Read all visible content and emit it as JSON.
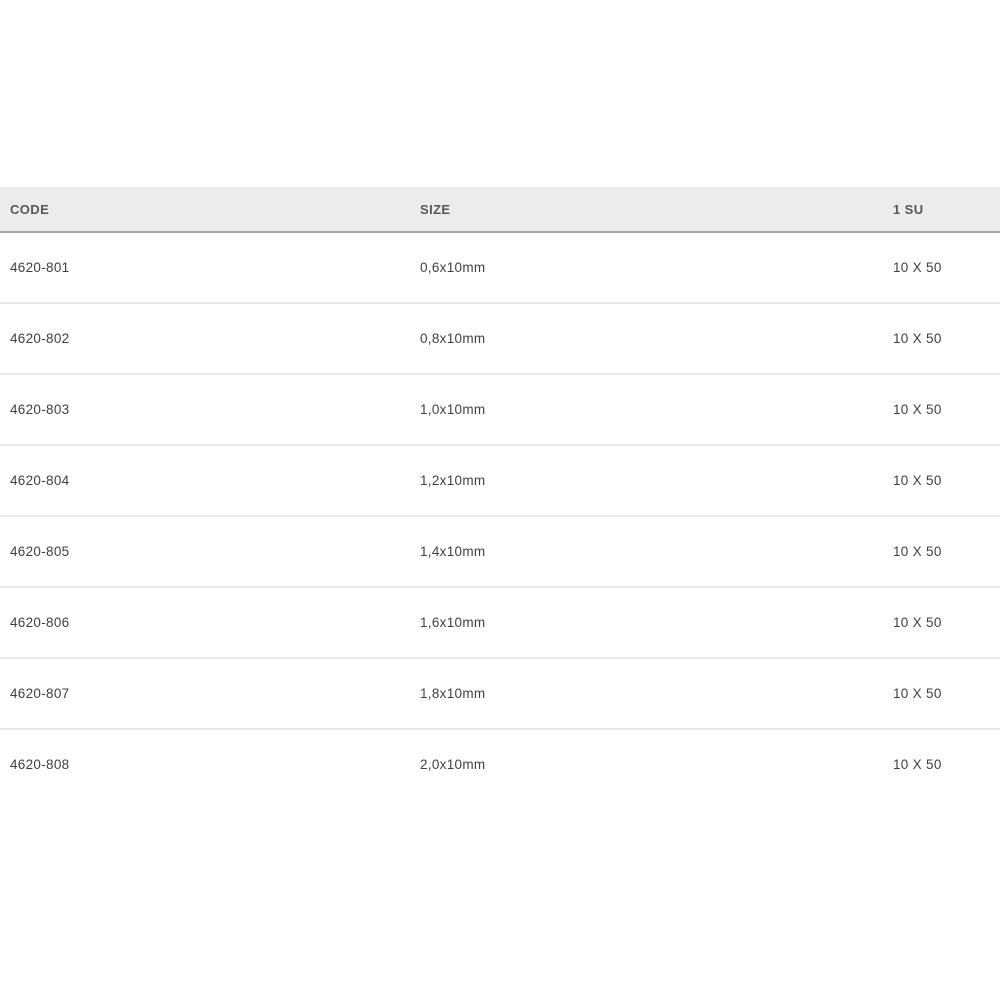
{
  "table": {
    "columns": [
      {
        "key": "code",
        "label": "CODE"
      },
      {
        "key": "size",
        "label": "SIZE"
      },
      {
        "key": "su",
        "label": "1 SU"
      }
    ],
    "rows": [
      {
        "code": "4620-801",
        "size": "0,6x10mm",
        "su": "10 X 50"
      },
      {
        "code": "4620-802",
        "size": "0,8x10mm",
        "su": "10 X 50"
      },
      {
        "code": "4620-803",
        "size": "1,0x10mm",
        "su": "10 X 50"
      },
      {
        "code": "4620-804",
        "size": "1,2x10mm",
        "su": "10 X 50"
      },
      {
        "code": "4620-805",
        "size": "1,4x10mm",
        "su": "10 X 50"
      },
      {
        "code": "4620-806",
        "size": "1,6x10mm",
        "su": "10 X 50"
      },
      {
        "code": "4620-807",
        "size": "1,8x10mm",
        "su": "10 X 50"
      },
      {
        "code": "4620-808",
        "size": "2,0x10mm",
        "su": "10 X 50"
      }
    ],
    "colors": {
      "header_background": "#ececec",
      "header_border": "#a8a8a8",
      "row_border": "#eaeaea",
      "header_text": "#58585a",
      "cell_text": "#3f3f3f",
      "page_background": "#ffffff"
    }
  }
}
